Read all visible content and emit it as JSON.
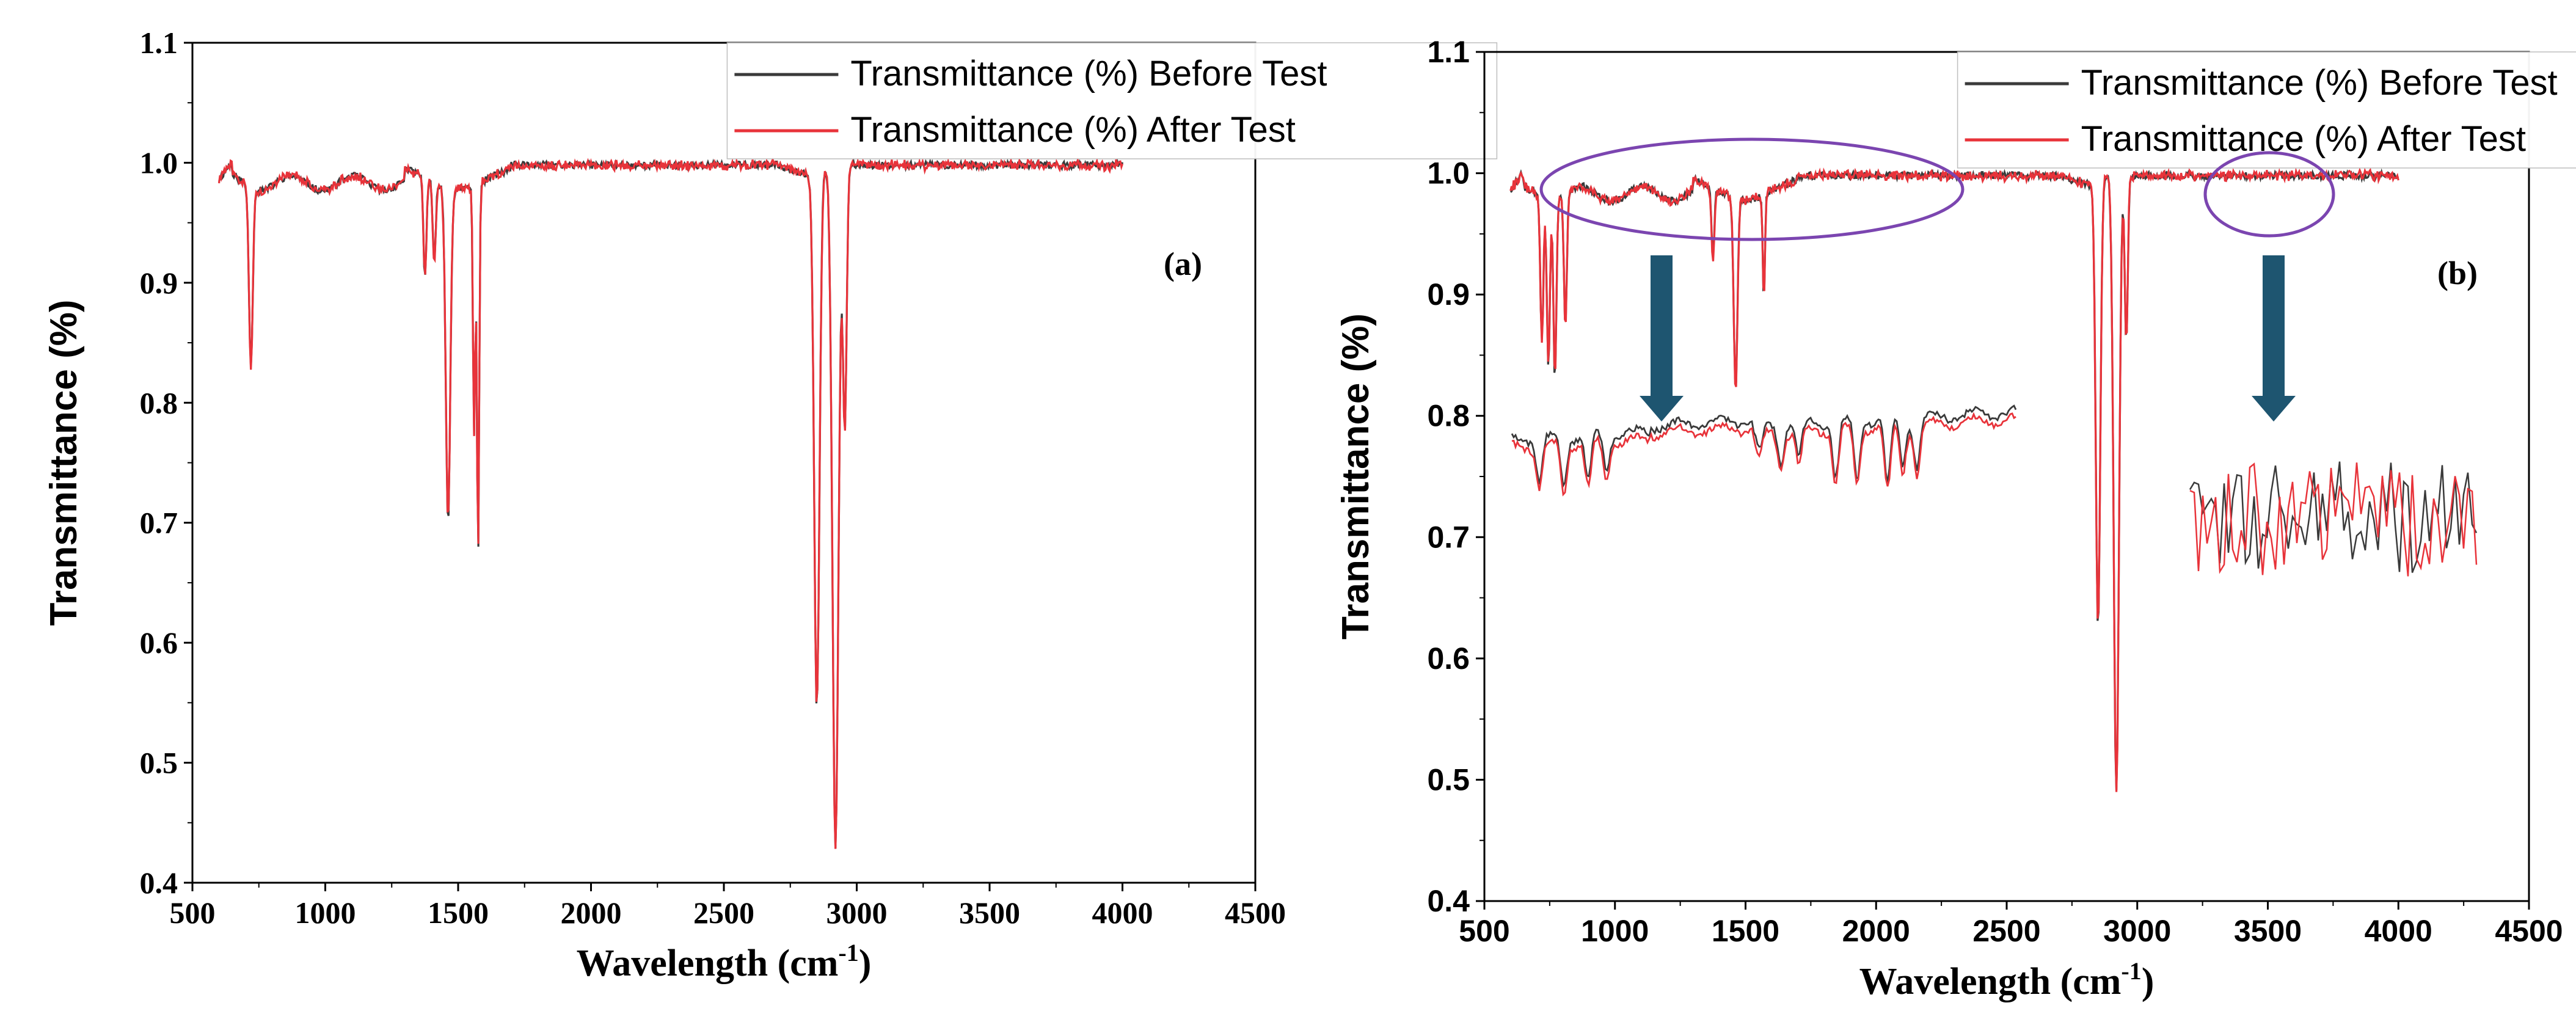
{
  "colors": {
    "before": "#3a3a3a",
    "after": "#e8333a",
    "ellipse": "#7b45b0",
    "arrow": "#1e5570"
  },
  "chart_data": [
    {
      "id": "a",
      "type": "line",
      "panel_label": "(a)",
      "xlabel": "Wavelength (cm",
      "xlabel_sup": "-1",
      "xlabel_close": ")",
      "ylabel": "Transmittance (%)",
      "xlim": [
        500,
        4500
      ],
      "ylim": [
        0.4,
        1.1
      ],
      "xticks": [
        "500",
        "1000",
        "1500",
        "2000",
        "2500",
        "3000",
        "3500",
        "4000",
        "4500"
      ],
      "yticks": [
        "0.4",
        "0.5",
        "0.6",
        "0.7",
        "0.8",
        "0.9",
        "1.0",
        "1.1"
      ],
      "x_range": [
        600,
        4000
      ],
      "baseline": 0.998,
      "peaks": [
        [
          720,
          0.85,
          10
        ],
        [
          1375,
          0.915,
          8
        ],
        [
          1410,
          0.93,
          8
        ],
        [
          1462,
          0.72,
          12
        ],
        [
          1560,
          0.79,
          6
        ],
        [
          1575,
          0.69,
          6
        ],
        [
          2850,
          0.55,
          14
        ],
        [
          2920,
          0.43,
          16
        ],
        [
          2955,
          0.78,
          10
        ]
      ],
      "series": [
        {
          "name": "Transmittance (%) Before Test",
          "color": "#3a3a3a"
        },
        {
          "name": "Transmittance (%) After Test",
          "color": "#e8333a"
        }
      ]
    },
    {
      "id": "b",
      "type": "line",
      "panel_label": "(b)",
      "xlabel": "Wavelength (cm",
      "xlabel_sup": "-1",
      "xlabel_close": ")",
      "ylabel": "Transmittance (%)",
      "xlim": [
        500,
        4500
      ],
      "ylim": [
        0.4,
        1.1
      ],
      "xticks": [
        "500",
        "1000",
        "1500",
        "2000",
        "2500",
        "3000",
        "3500",
        "4000",
        "4500"
      ],
      "yticks": [
        "0.4",
        "0.5",
        "0.6",
        "0.7",
        "0.8",
        "0.9",
        "1.0",
        "1.1"
      ],
      "x_range": [
        600,
        4000
      ],
      "baseline": 0.998,
      "peaks": [
        [
          720,
          0.88,
          8
        ],
        [
          745,
          0.86,
          8
        ],
        [
          770,
          0.85,
          8
        ],
        [
          810,
          0.89,
          8
        ],
        [
          1375,
          0.94,
          8
        ],
        [
          1462,
          0.84,
          10
        ],
        [
          1570,
          0.91,
          6
        ],
        [
          2850,
          0.63,
          12
        ],
        [
          2920,
          0.49,
          14
        ],
        [
          2958,
          0.86,
          8
        ]
      ],
      "series": [
        {
          "name": "Transmittance (%) Before Test",
          "color": "#3a3a3a"
        },
        {
          "name": "Transmittance (%) After Test",
          "color": "#e8333a"
        }
      ],
      "annotations": [
        "ellipse highlighting 600–1700 cm-1 region",
        "ellipse highlighting ~3500 cm-1 region",
        "zoomed insets below each ellipse"
      ]
    }
  ]
}
